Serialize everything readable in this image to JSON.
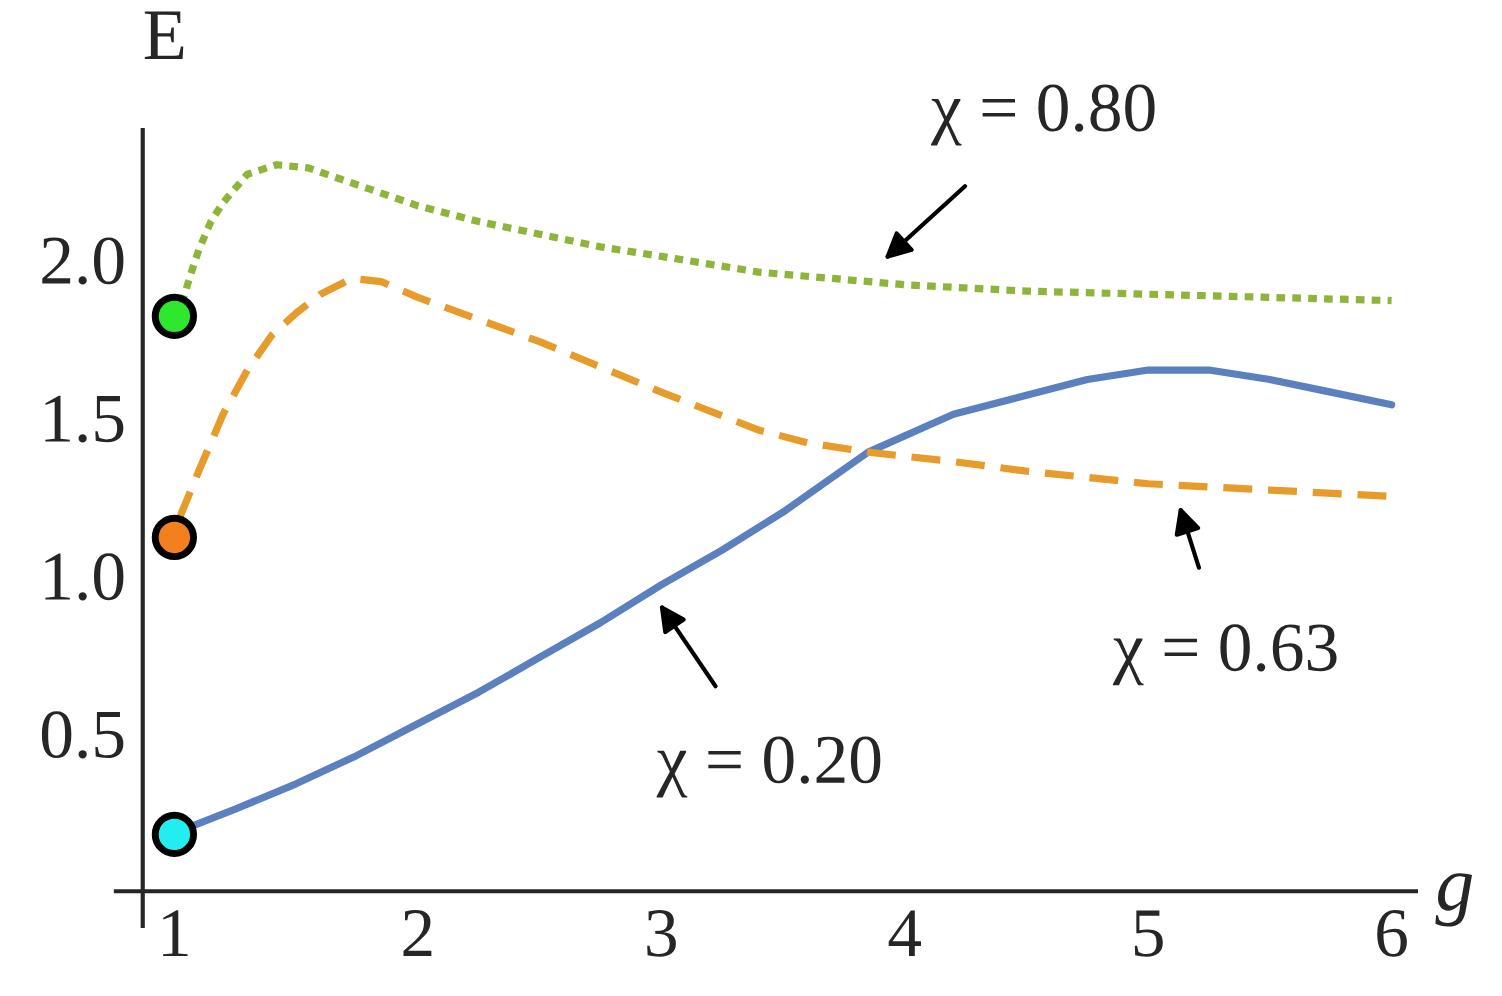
{
  "chart_data": {
    "type": "line",
    "ylabel": "E",
    "xlabel": "g",
    "xlim": [
      0.76,
      6.1
    ],
    "ylim": [
      -0.11,
      2.41
    ],
    "xticks": [
      1,
      2,
      3,
      4,
      5,
      6
    ],
    "yticks": [
      0.5,
      {
        "value": 1.0,
        "label": "1.0"
      },
      1.5,
      {
        "value": 2.0,
        "label": "2.0"
      }
    ],
    "grid": false,
    "legend": false,
    "marker": "none",
    "series": [
      {
        "color": "#5b80bf",
        "line_style": "solid",
        "x": [
          1.02,
          1.25,
          1.5,
          1.75,
          2,
          2.25,
          2.5,
          2.75,
          3,
          3.25,
          3.5,
          3.85,
          4.2,
          4.5,
          4.75,
          5,
          5.25,
          5.5,
          5.75,
          6
        ],
        "values": [
          0.19,
          0.26,
          0.34,
          0.43,
          0.53,
          0.63,
          0.74,
          0.85,
          0.97,
          1.08,
          1.2,
          1.39,
          1.51,
          1.57,
          1.62,
          1.65,
          1.65,
          1.62,
          1.58,
          1.54
        ]
      },
      {
        "color": "#e69b2b",
        "line_style": "dashed",
        "x": [
          1.02,
          1.1,
          1.2,
          1.3,
          1.4,
          1.5,
          1.6,
          1.73,
          1.85,
          2,
          2.25,
          2.5,
          2.75,
          3,
          3.2,
          3.4,
          3.6,
          3.85,
          4.2,
          4.5,
          5,
          5.5,
          6
        ],
        "values": [
          1.18,
          1.33,
          1.51,
          1.65,
          1.76,
          1.83,
          1.89,
          1.94,
          1.93,
          1.88,
          1.81,
          1.74,
          1.66,
          1.58,
          1.52,
          1.46,
          1.42,
          1.39,
          1.36,
          1.33,
          1.29,
          1.27,
          1.25
        ]
      },
      {
        "color": "#8db53a",
        "line_style": "dotted",
        "x": [
          1.03,
          1.07,
          1.1,
          1.15,
          1.2,
          1.3,
          1.42,
          1.55,
          1.7,
          2,
          2.25,
          2.5,
          2.75,
          3,
          3.4,
          4,
          4.5,
          5,
          5.5,
          6
        ],
        "values": [
          1.86,
          1.96,
          2.03,
          2.12,
          2.18,
          2.27,
          2.3,
          2.29,
          2.25,
          2.17,
          2.12,
          2.08,
          2.04,
          2.01,
          1.96,
          1.92,
          1.9,
          1.89,
          1.88,
          1.87
        ]
      },
      {
        "type": "scatter",
        "marker": "circle",
        "x": [
          1,
          1,
          1
        ],
        "values": [
          0.18,
          1.12,
          1.82
        ],
        "colors": [
          "#22eef0",
          "#f47f1f",
          "#2ee82e"
        ]
      }
    ],
    "annotations": [
      "χ = 0.80",
      "χ = 0.63",
      "χ = 0.20"
    ]
  }
}
